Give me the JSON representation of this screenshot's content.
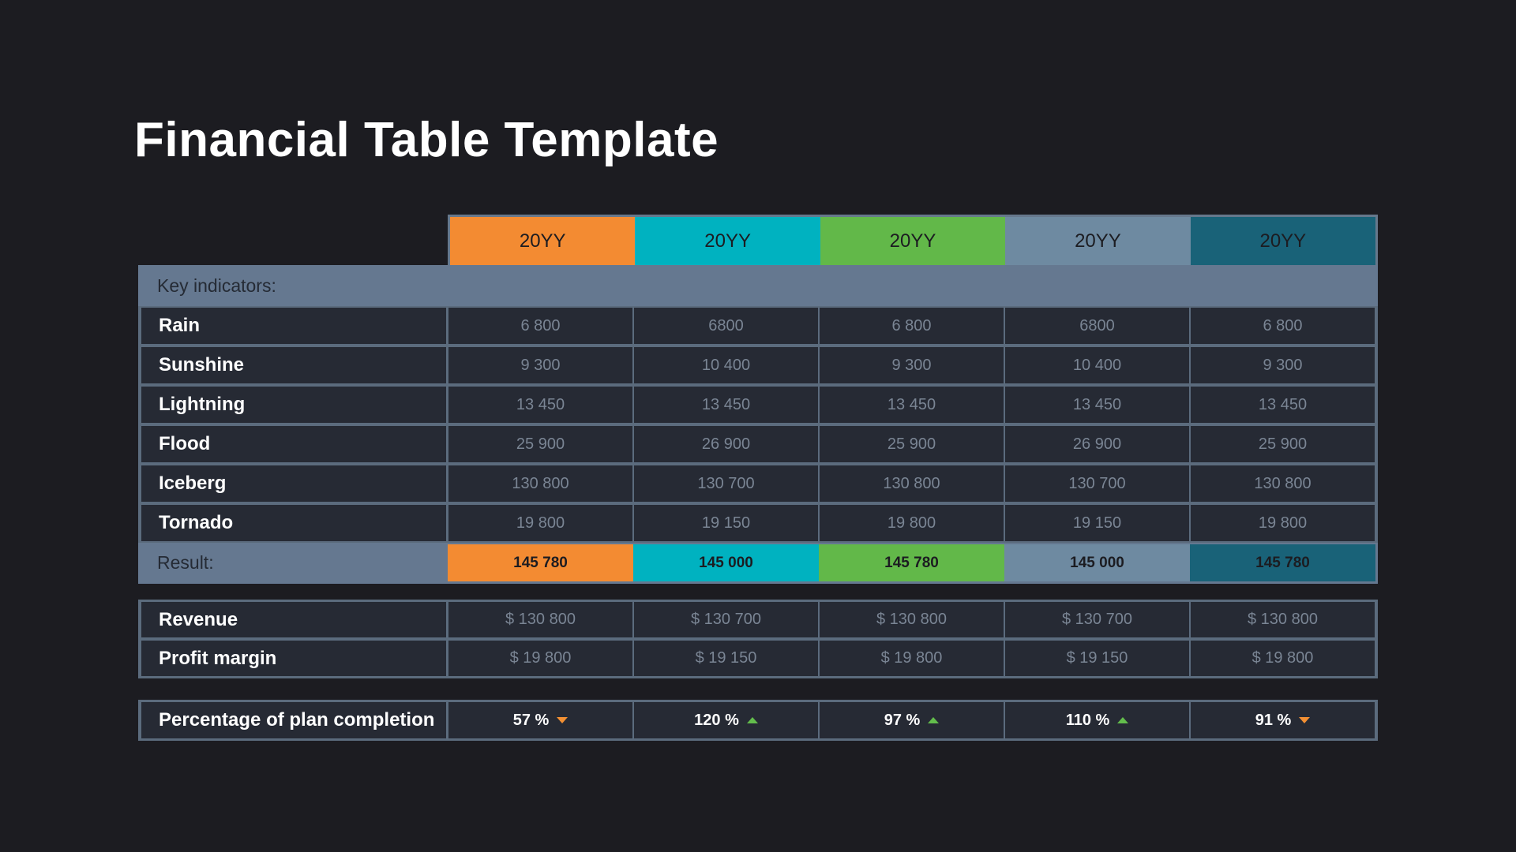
{
  "title": "Financial Table Template",
  "columns": [
    {
      "label": "20YY",
      "color": "#f38b32"
    },
    {
      "label": "20YY",
      "color": "#00b2c0"
    },
    {
      "label": "20YY",
      "color": "#62b849"
    },
    {
      "label": "20YY",
      "color": "#6e8aa1"
    },
    {
      "label": "20YY",
      "color": "#196278"
    }
  ],
  "key_indicators_label": "Key indicators:",
  "indicators": [
    {
      "label": "Rain",
      "values": [
        "6 800",
        "6800",
        "6 800",
        "6800",
        "6 800"
      ]
    },
    {
      "label": "Sunshine",
      "values": [
        "9 300",
        "10 400",
        "9 300",
        "10 400",
        "9 300"
      ]
    },
    {
      "label": "Lightning",
      "values": [
        "13 450",
        "13 450",
        "13 450",
        "13 450",
        "13 450"
      ]
    },
    {
      "label": "Flood",
      "values": [
        "25 900",
        "26 900",
        "25 900",
        "26 900",
        "25 900"
      ]
    },
    {
      "label": "Iceberg",
      "values": [
        "130 800",
        "130 700",
        "130 800",
        "130 700",
        "130 800"
      ]
    },
    {
      "label": "Tornado",
      "values": [
        "19 800",
        "19 150",
        "19 800",
        "19 150",
        "19 800"
      ]
    }
  ],
  "result": {
    "label": "Result:",
    "values": [
      "145 780",
      "145 000",
      "145 780",
      "145 000",
      "145 780"
    ]
  },
  "finance": [
    {
      "label": "Revenue",
      "values": [
        "$ 130 800",
        "$ 130 700",
        "$ 130 800",
        "$ 130 700",
        "$ 130 800"
      ]
    },
    {
      "label": "Profit margin",
      "values": [
        "$ 19 800",
        "$ 19 150",
        "$ 19 800",
        "$ 19 150",
        "$ 19 800"
      ]
    }
  ],
  "plan": {
    "label": "Percentage of plan completion",
    "values": [
      "57 %",
      "120 %",
      "97 %",
      "110 %",
      "91 %"
    ],
    "trends": [
      "down",
      "up",
      "up",
      "up",
      "down"
    ]
  }
}
